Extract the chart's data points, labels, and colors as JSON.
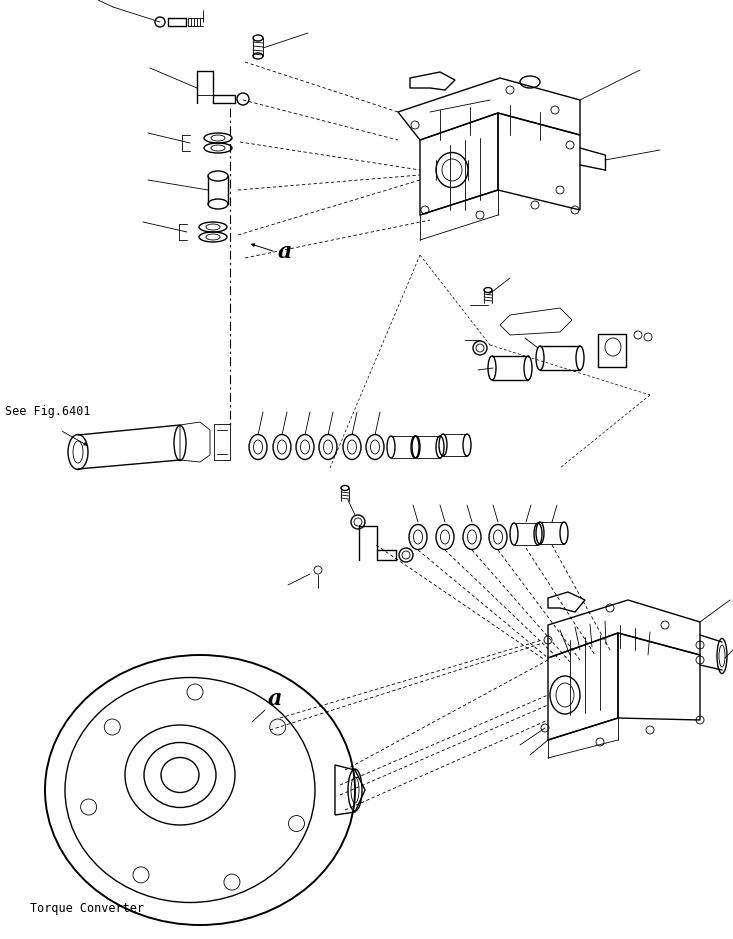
{
  "background_color": "#ffffff",
  "fig_width": 7.33,
  "fig_height": 9.39,
  "dpi": 100,
  "label_see_fig": "See Fig.6401",
  "label_torque": "Torque Converter",
  "label_a1": "a",
  "label_a2": "a",
  "line_color": "#000000",
  "text_color": "#000000",
  "font_size_labels": 8.5,
  "font_size_a": 16,
  "lw_thin": 0.6,
  "lw_med": 1.0,
  "lw_thick": 1.4
}
